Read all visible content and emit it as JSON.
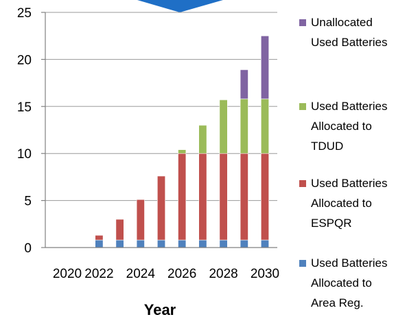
{
  "chart_data": {
    "type": "bar",
    "stacked": true,
    "title": "",
    "xlabel": "Year",
    "ylabel": "",
    "ylim": [
      0,
      25
    ],
    "yticks": [
      0,
      5,
      10,
      15,
      20,
      25
    ],
    "grid": "horizontal",
    "legend": "right",
    "categories": [
      2020,
      2021,
      2022,
      2023,
      2024,
      2025,
      2026,
      2027,
      2028,
      2029,
      2030
    ],
    "xtick_labels": [
      "2020",
      "2022",
      "2024",
      "2026",
      "2028",
      "2030"
    ],
    "series": [
      {
        "name": "Used Batteries Allocated to Area Reg.",
        "legend_lines": [
          "Used Batteries",
          "Allocated to",
          "Area Reg."
        ],
        "color": "#4F81BD",
        "values": [
          0,
          0,
          0.8,
          0.8,
          0.8,
          0.8,
          0.8,
          0.8,
          0.8,
          0.8,
          0.8
        ]
      },
      {
        "name": "Used Batteries Allocated to ESPQR",
        "legend_lines": [
          "Used Batteries",
          "Allocated to",
          "ESPQR"
        ],
        "color": "#C0504D",
        "values": [
          0,
          0,
          0.5,
          2.2,
          4.3,
          6.8,
          9.2,
          9.2,
          9.2,
          9.2,
          9.2
        ]
      },
      {
        "name": "Used Batteries Allocated to TDUD",
        "legend_lines": [
          "Used Batteries",
          "Allocated to",
          "TDUD"
        ],
        "color": "#9BBB59",
        "values": [
          0,
          0,
          0,
          0,
          0,
          0,
          0.4,
          3.0,
          5.7,
          5.8,
          5.8
        ]
      },
      {
        "name": "Unallocated Used Batteries",
        "legend_lines": [
          "Unallocated",
          "Used Batteries"
        ],
        "color": "#8064A2",
        "values": [
          0,
          0,
          0,
          0,
          0,
          0,
          0,
          0,
          0,
          3.1,
          6.7
        ]
      }
    ],
    "legend_order": [
      3,
      2,
      1,
      0
    ]
  },
  "decoration": {
    "top_marker_color": "#1F6FC6",
    "bar_edge_color": "#ffffff",
    "axis_color": "#808080",
    "grid_color": "#9a9a9a"
  }
}
